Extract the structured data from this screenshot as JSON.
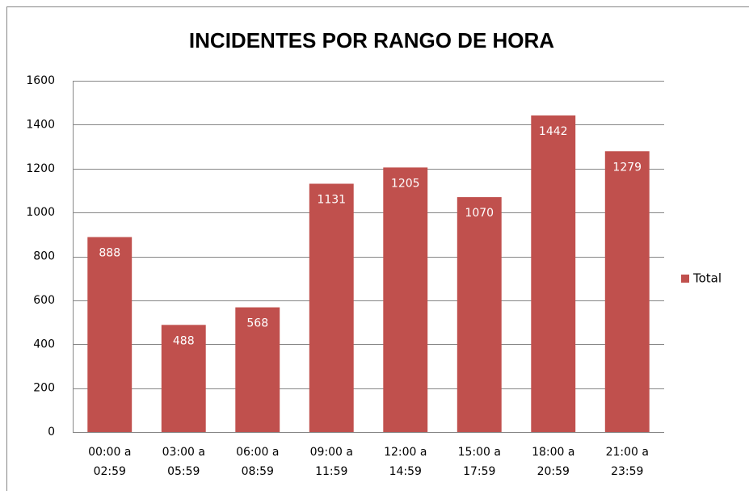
{
  "chart_data": {
    "type": "bar",
    "title": "INCIDENTES POR RANGO DE HORA",
    "categories": [
      "00:00 a 02:59",
      "03:00 a 05:59",
      "06:00 a 08:59",
      "09:00 a 11:59",
      "12:00 a 14:59",
      "15:00 a 17:59",
      "18:00 a 20:59",
      "21:00 a 23:59"
    ],
    "series": [
      {
        "name": "Total",
        "color": "#c0504d",
        "values": [
          888,
          488,
          568,
          1131,
          1205,
          1070,
          1442,
          1279
        ]
      }
    ],
    "ylim": [
      0,
      1600
    ],
    "yticks": [
      0,
      200,
      400,
      600,
      800,
      1000,
      1200,
      1400,
      1600
    ],
    "grid": true,
    "legend": "right"
  }
}
